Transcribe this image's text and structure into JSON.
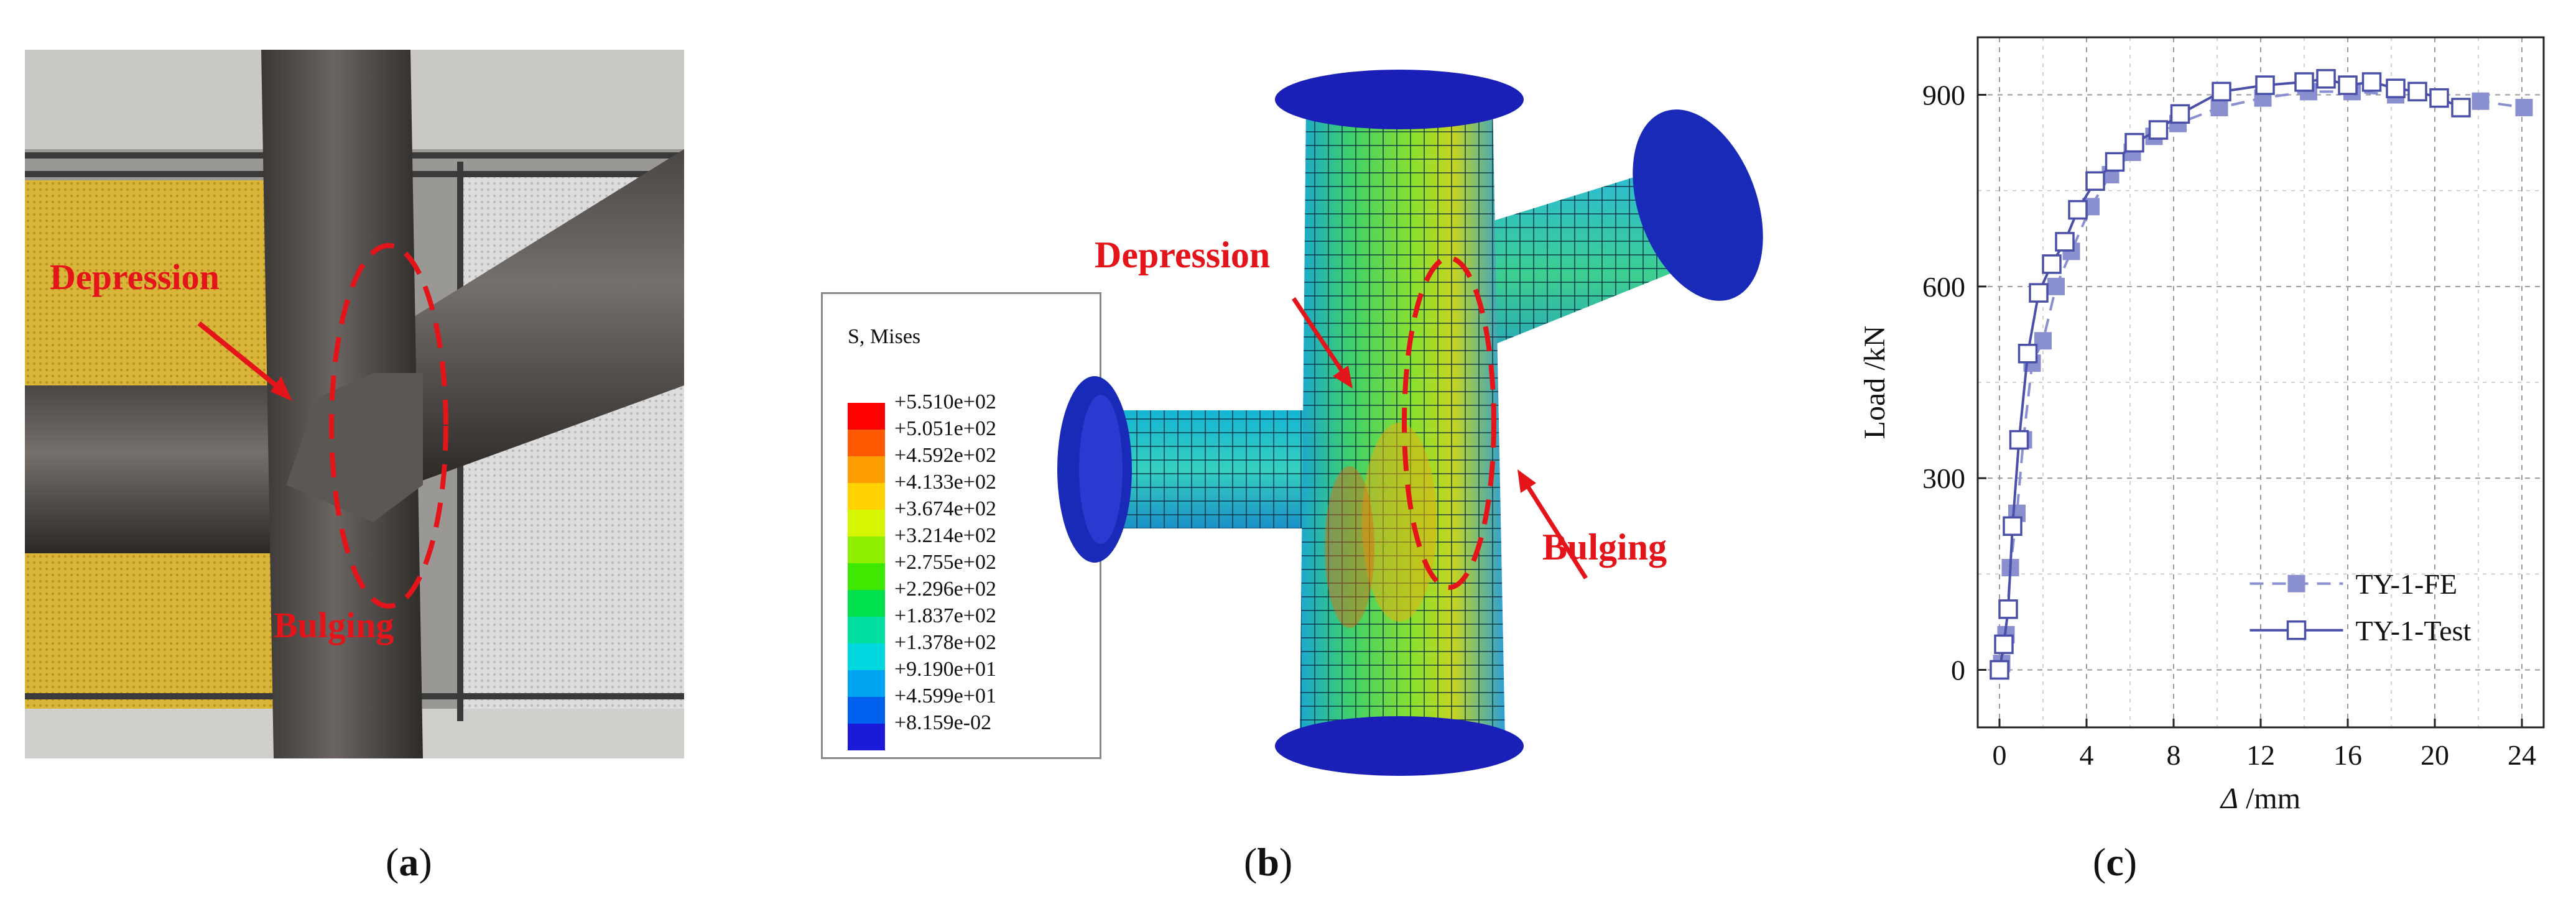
{
  "panels": {
    "a": {
      "label_open": "(",
      "label_letter": "a",
      "label_close": ")",
      "annotations": {
        "depression": "Depression",
        "bulging": "Bulging"
      }
    },
    "b": {
      "label_open": "(",
      "label_letter": "b",
      "label_close": ")",
      "annotations": {
        "depression": "Depression",
        "bulging": "Bulging"
      },
      "legend": {
        "title": "S, Mises",
        "entries": [
          {
            "value": "+5.510e+02",
            "color": "#ff0000"
          },
          {
            "value": "+5.051e+02",
            "color": "#ff5a00"
          },
          {
            "value": "+4.592e+02",
            "color": "#ff9e00"
          },
          {
            "value": "+4.133e+02",
            "color": "#ffd200"
          },
          {
            "value": "+3.674e+02",
            "color": "#d6f500"
          },
          {
            "value": "+3.214e+02",
            "color": "#8ef000"
          },
          {
            "value": "+2.755e+02",
            "color": "#3fe800"
          },
          {
            "value": "+2.296e+02",
            "color": "#00e04a"
          },
          {
            "value": "+1.837e+02",
            "color": "#00dea0"
          },
          {
            "value": "+1.378e+02",
            "color": "#00d8e0"
          },
          {
            "value": "+9.190e+01",
            "color": "#00a4f0"
          },
          {
            "value": "+4.599e+01",
            "color": "#0060ee"
          },
          {
            "value": "+8.159e-02",
            "color": "#1a1ad8"
          }
        ]
      }
    },
    "c": {
      "label_open": "(",
      "label_letter": "c",
      "label_close": ")"
    }
  },
  "chart_data": {
    "type": "line",
    "xlabel_symbol": "Δ",
    "xlabel_unit": "/mm",
    "ylabel": "Load /kN",
    "xlim": [
      -1,
      25
    ],
    "ylim": [
      -90,
      990
    ],
    "xticks": [
      0,
      4,
      8,
      12,
      16,
      20,
      24
    ],
    "yticks": [
      0,
      300,
      600,
      900
    ],
    "grid": true,
    "legend_position": "bottom-right",
    "series": [
      {
        "name": "TY-1-FE",
        "color": "#8a8fd0",
        "line": "dashed",
        "marker": "filled-square",
        "x": [
          0.1,
          0.3,
          0.5,
          0.8,
          1.1,
          1.5,
          2.0,
          2.6,
          3.3,
          4.2,
          5.1,
          6.1,
          7.1,
          8.2,
          10.1,
          12.1,
          14.2,
          16.2,
          18.2,
          20.2,
          22.1,
          24.1
        ],
        "y": [
          10,
          55,
          160,
          245,
          360,
          480,
          515,
          600,
          655,
          725,
          775,
          810,
          835,
          855,
          880,
          895,
          905,
          905,
          900,
          895,
          890,
          880
        ]
      },
      {
        "name": "TY-1-Test",
        "color": "#4a4fa8",
        "line": "solid",
        "marker": "open-square",
        "x": [
          0.0,
          0.2,
          0.4,
          0.6,
          0.9,
          1.3,
          1.8,
          2.4,
          3.0,
          3.6,
          4.4,
          5.3,
          6.2,
          7.3,
          8.3,
          10.2,
          12.2,
          14.0,
          15.0,
          16.0,
          17.1,
          18.2,
          19.2,
          20.2,
          21.2
        ],
        "y": [
          0,
          40,
          95,
          225,
          360,
          495,
          590,
          635,
          670,
          720,
          765,
          795,
          825,
          845,
          870,
          905,
          915,
          920,
          925,
          915,
          920,
          910,
          905,
          895,
          880
        ]
      }
    ]
  }
}
